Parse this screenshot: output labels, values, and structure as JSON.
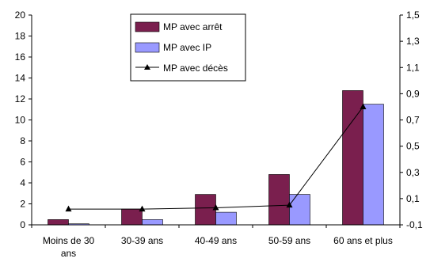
{
  "chart_data": {
    "type": "bar",
    "categories": [
      "Moins de 30 ans",
      "30-39 ans",
      "40-49 ans",
      "50-59 ans",
      "60 ans et plus"
    ],
    "series": [
      {
        "name": "MP avec arrêt",
        "axis": "left",
        "kind": "bar",
        "color": "#7a1f4e",
        "values": [
          0.5,
          1.5,
          2.9,
          4.8,
          12.8
        ]
      },
      {
        "name": "MP avec IP",
        "axis": "left",
        "kind": "bar",
        "color": "#9999ff",
        "values": [
          0.1,
          0.5,
          1.2,
          2.9,
          11.5
        ]
      },
      {
        "name": "MP avec décès",
        "axis": "right",
        "kind": "line",
        "color": "#000000",
        "marker": "triangle",
        "values": [
          0.02,
          0.02,
          0.03,
          0.05,
          0.8
        ]
      }
    ],
    "left_axis": {
      "min": 0,
      "max": 20,
      "step": 2,
      "ticks": [
        "0",
        "2",
        "4",
        "6",
        "8",
        "10",
        "12",
        "14",
        "16",
        "18",
        "20"
      ]
    },
    "right_axis": {
      "min": -0.1,
      "max": 1.5,
      "step": 0.2,
      "ticks": [
        "-0,1",
        "0,1",
        "0,3",
        "0,5",
        "0,7",
        "0,9",
        "1,1",
        "1,3",
        "1,5"
      ]
    },
    "grid": false,
    "legend_placement": "top-center"
  }
}
